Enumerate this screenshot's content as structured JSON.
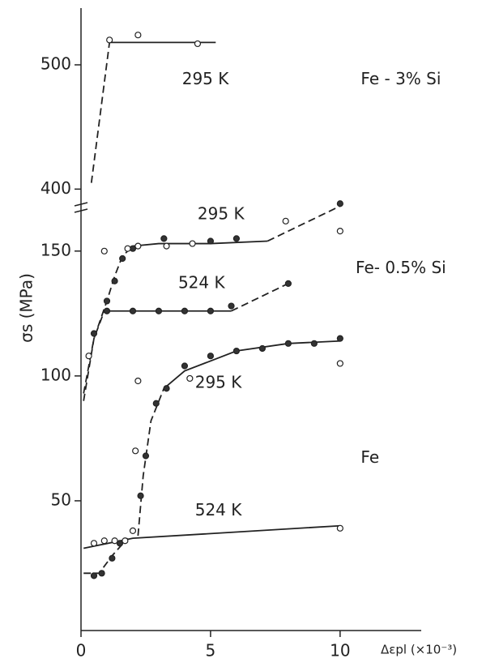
{
  "chart_data": [
    {
      "type": "scatter",
      "xlim": [
        0,
        13.1
      ],
      "ylim": [
        380,
        545
      ],
      "yticks": [
        400,
        500
      ],
      "annotations": [
        {
          "text": "295 K",
          "x": 3.9,
          "y": 488
        },
        {
          "text": "Fe - 3% Si",
          "x": 10.8,
          "y": 488
        }
      ],
      "series": [
        {
          "marker": "line",
          "dashed": true,
          "x": [
            0.4,
            1.1
          ],
          "values": [
            405,
            518
          ]
        },
        {
          "marker": "line",
          "dashed": false,
          "x": [
            1.1,
            5.2
          ],
          "values": [
            518,
            518
          ]
        },
        {
          "marker": "open",
          "x": [
            1.1,
            2.2,
            4.5
          ],
          "values": [
            520,
            524,
            517
          ]
        }
      ]
    },
    {
      "type": "scatter",
      "xlim": [
        0,
        13.1
      ],
      "ylim": [
        0,
        172
      ],
      "xticks": [
        0,
        5,
        10
      ],
      "yticks": [
        50,
        100,
        150
      ],
      "ylabel": "σs (MPa)",
      "xlabel": "Δεpl (×10⁻³)",
      "annotations": [
        {
          "text": "295 K",
          "x": 4.5,
          "y": 164.6
        },
        {
          "text": "Fe- 0.5% Si",
          "x": 10.6,
          "y": 143
        },
        {
          "text": "524 K",
          "x": 3.75,
          "y": 137
        },
        {
          "text": "295 K",
          "x": 4.4,
          "y": 97
        },
        {
          "text": "Fe",
          "x": 10.8,
          "y": 67
        },
        {
          "text": "524 K",
          "x": 4.4,
          "y": 46
        }
      ],
      "series": [
        {
          "marker": "line",
          "dashed": true,
          "x": [
            0.1,
            0.5,
            1,
            1.3,
            1.6,
            2
          ],
          "values": [
            93,
            115,
            130,
            140,
            148,
            152
          ]
        },
        {
          "marker": "line",
          "dashed": false,
          "x": [
            2,
            3,
            5,
            7.2
          ],
          "values": [
            152,
            153,
            153,
            154
          ]
        },
        {
          "marker": "line",
          "dashed": true,
          "x": [
            7.2,
            10
          ],
          "values": [
            154,
            168
          ]
        },
        {
          "marker": "filled",
          "x": [
            1,
            1.3,
            1.6,
            2,
            3.2,
            5,
            6,
            10
          ],
          "values": [
            130,
            138,
            147,
            151,
            155,
            154,
            155,
            169
          ]
        },
        {
          "marker": "open",
          "x": [
            0.9,
            1.8,
            2.2,
            3.3,
            4.3,
            7.9,
            10
          ],
          "values": [
            150,
            151,
            152,
            152,
            153,
            162,
            158
          ]
        },
        {
          "marker": "line",
          "dashed": true,
          "x": [
            0.1,
            0.5,
            0.9
          ],
          "values": [
            90,
            115,
            126
          ]
        },
        {
          "marker": "line",
          "dashed": false,
          "x": [
            0.9,
            5.8
          ],
          "values": [
            126,
            126
          ]
        },
        {
          "marker": "line",
          "dashed": true,
          "x": [
            5.8,
            8
          ],
          "values": [
            126,
            137
          ]
        },
        {
          "marker": "filled",
          "x": [
            0.5,
            1,
            2,
            3,
            4,
            5,
            5.8,
            8
          ],
          "values": [
            117,
            126,
            126,
            126,
            126,
            126,
            128,
            137
          ]
        },
        {
          "marker": "open",
          "x": [
            0.3
          ],
          "values": [
            108
          ]
        },
        {
          "marker": "line",
          "dashed": true,
          "x": [
            2.2,
            2.4,
            2.7,
            3.2
          ],
          "values": [
            36,
            60,
            82,
            95
          ]
        },
        {
          "marker": "line",
          "dashed": false,
          "x": [
            3.2,
            4,
            6,
            8,
            10
          ],
          "values": [
            95,
            102,
            110,
            113,
            114
          ]
        },
        {
          "marker": "filled",
          "x": [
            2.3,
            2.5,
            2.9,
            3.3,
            4,
            5,
            6,
            7,
            8,
            9,
            10
          ],
          "values": [
            52,
            68,
            89,
            95,
            104,
            108,
            110,
            111,
            113,
            113,
            115
          ]
        },
        {
          "marker": "open",
          "x": [
            2.2,
            2.1,
            4.2,
            10
          ],
          "values": [
            98,
            70,
            99,
            105
          ]
        },
        {
          "marker": "line",
          "dashed": true,
          "x": [
            0.1,
            0.7,
            1.2,
            1.8
          ],
          "values": [
            21,
            21,
            28,
            35
          ]
        },
        {
          "marker": "line",
          "dashed": false,
          "x": [
            0.1,
            2,
            10
          ],
          "values": [
            31,
            35,
            40
          ]
        },
        {
          "marker": "filled",
          "x": [
            0.5,
            0.8,
            1.2,
            1.5
          ],
          "values": [
            20,
            21,
            27,
            33
          ]
        },
        {
          "marker": "open",
          "x": [
            0.5,
            0.9,
            1.3,
            1.7,
            2,
            10
          ],
          "values": [
            33,
            34,
            34,
            34,
            38,
            39
          ]
        }
      ]
    }
  ]
}
